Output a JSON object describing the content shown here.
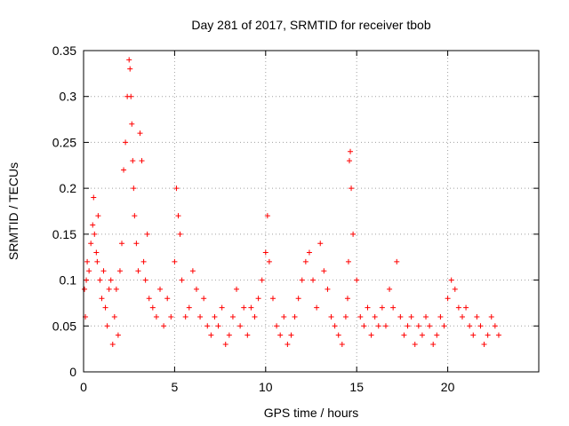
{
  "chart_data": {
    "type": "scatter",
    "title": "Day 281 of 2017, SRMTID for receiver tbob",
    "xlabel": "GPS time / hours",
    "ylabel": "SRMTID / TECUs",
    "xlim": [
      0,
      25
    ],
    "ylim": [
      0,
      0.35
    ],
    "xticks": [
      0,
      5,
      10,
      15,
      20
    ],
    "yticks": [
      0,
      0.05,
      0.1,
      0.15,
      0.2,
      0.25,
      0.3,
      0.35
    ],
    "xtick_labels": [
      "0",
      "5",
      "10",
      "15",
      "20"
    ],
    "ytick_labels": [
      "0",
      "0.05",
      "0.1",
      "0.15",
      "0.2",
      "0.25",
      "0.3",
      "0.35"
    ],
    "grid": true,
    "marker": "+",
    "marker_color": "#ff0000",
    "series": [
      {
        "name": "SRMTID",
        "x": [
          0.05,
          0.1,
          0.15,
          0.2,
          0.3,
          0.4,
          0.5,
          0.55,
          0.6,
          0.7,
          0.75,
          0.8,
          0.9,
          1.0,
          1.1,
          1.2,
          1.3,
          1.4,
          1.5,
          1.6,
          1.7,
          1.8,
          1.9,
          2.0,
          2.1,
          2.2,
          2.3,
          2.4,
          2.5,
          2.55,
          2.6,
          2.65,
          2.7,
          2.75,
          2.8,
          2.9,
          3.0,
          3.1,
          3.2,
          3.3,
          3.4,
          3.5,
          3.6,
          3.8,
          4.0,
          4.2,
          4.4,
          4.6,
          4.8,
          5.0,
          5.1,
          5.2,
          5.3,
          5.4,
          5.6,
          5.8,
          6.0,
          6.2,
          6.4,
          6.6,
          6.8,
          7.0,
          7.2,
          7.4,
          7.6,
          7.8,
          8.0,
          8.2,
          8.4,
          8.6,
          8.8,
          9.0,
          9.2,
          9.4,
          9.6,
          9.8,
          10.0,
          10.1,
          10.2,
          10.4,
          10.6,
          10.8,
          11.0,
          11.2,
          11.4,
          11.6,
          11.8,
          12.0,
          12.2,
          12.4,
          12.6,
          12.8,
          13.0,
          13.2,
          13.4,
          13.6,
          13.8,
          14.0,
          14.2,
          14.4,
          14.5,
          14.55,
          14.6,
          14.65,
          14.7,
          14.8,
          15.0,
          15.2,
          15.4,
          15.6,
          15.8,
          16.0,
          16.2,
          16.4,
          16.6,
          16.8,
          17.0,
          17.2,
          17.4,
          17.6,
          17.8,
          18.0,
          18.2,
          18.4,
          18.6,
          18.8,
          19.0,
          19.2,
          19.4,
          19.6,
          19.8,
          20.0,
          20.2,
          20.4,
          20.6,
          20.8,
          21.0,
          21.2,
          21.4,
          21.6,
          21.8,
          22.0,
          22.2,
          22.4,
          22.6,
          22.8
        ],
        "y": [
          0.09,
          0.06,
          0.1,
          0.12,
          0.11,
          0.14,
          0.16,
          0.19,
          0.15,
          0.13,
          0.12,
          0.17,
          0.1,
          0.08,
          0.11,
          0.07,
          0.05,
          0.09,
          0.1,
          0.03,
          0.06,
          0.09,
          0.04,
          0.11,
          0.14,
          0.22,
          0.25,
          0.3,
          0.34,
          0.33,
          0.3,
          0.27,
          0.23,
          0.2,
          0.17,
          0.14,
          0.11,
          0.26,
          0.23,
          0.12,
          0.1,
          0.15,
          0.08,
          0.07,
          0.06,
          0.09,
          0.05,
          0.08,
          0.06,
          0.12,
          0.2,
          0.17,
          0.15,
          0.1,
          0.06,
          0.07,
          0.11,
          0.09,
          0.06,
          0.08,
          0.05,
          0.04,
          0.06,
          0.05,
          0.07,
          0.03,
          0.04,
          0.06,
          0.09,
          0.05,
          0.07,
          0.04,
          0.07,
          0.06,
          0.08,
          0.1,
          0.13,
          0.17,
          0.12,
          0.08,
          0.05,
          0.04,
          0.06,
          0.03,
          0.04,
          0.06,
          0.08,
          0.1,
          0.12,
          0.13,
          0.1,
          0.07,
          0.14,
          0.11,
          0.09,
          0.06,
          0.05,
          0.04,
          0.03,
          0.06,
          0.08,
          0.12,
          0.23,
          0.24,
          0.2,
          0.15,
          0.1,
          0.06,
          0.05,
          0.07,
          0.04,
          0.06,
          0.05,
          0.07,
          0.05,
          0.09,
          0.07,
          0.12,
          0.06,
          0.04,
          0.05,
          0.06,
          0.03,
          0.05,
          0.04,
          0.06,
          0.05,
          0.03,
          0.04,
          0.06,
          0.05,
          0.08,
          0.1,
          0.09,
          0.07,
          0.06,
          0.07,
          0.05,
          0.04,
          0.06,
          0.05,
          0.03,
          0.04,
          0.06,
          0.05,
          0.04
        ]
      }
    ]
  }
}
